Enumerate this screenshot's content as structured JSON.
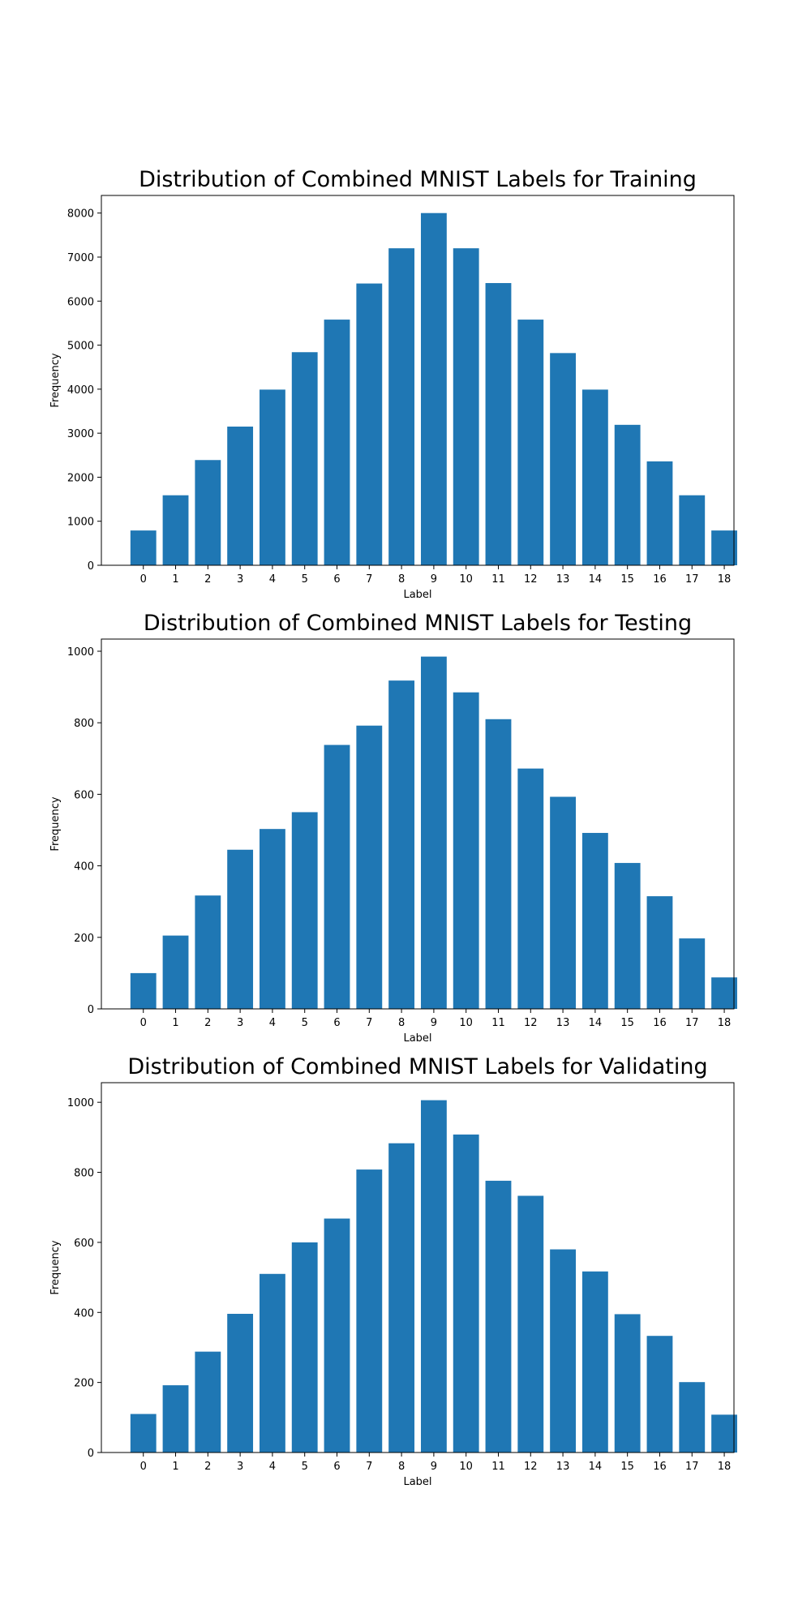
{
  "chart_data": [
    {
      "type": "bar",
      "title": "Distribution of Combined MNIST Labels for Training",
      "xlabel": "Label",
      "ylabel": "Frequency",
      "categories": [
        "0",
        "1",
        "2",
        "3",
        "4",
        "5",
        "6",
        "7",
        "8",
        "9",
        "10",
        "11",
        "12",
        "13",
        "14",
        "15",
        "16",
        "17",
        "18"
      ],
      "values": [
        790,
        1590,
        2390,
        3150,
        3990,
        4840,
        5580,
        6400,
        7200,
        8000,
        7200,
        6410,
        5580,
        4820,
        3990,
        3190,
        2360,
        1590,
        790
      ],
      "yticks": [
        0,
        1000,
        2000,
        3000,
        4000,
        5000,
        6000,
        7000,
        8000
      ],
      "ylim": [
        0,
        8400
      ],
      "color": "#1f77b4",
      "grid": false
    },
    {
      "type": "bar",
      "title": "Distribution of Combined MNIST Labels for Testing",
      "xlabel": "Label",
      "ylabel": "Frequency",
      "categories": [
        "0",
        "1",
        "2",
        "3",
        "4",
        "5",
        "6",
        "7",
        "8",
        "9",
        "10",
        "11",
        "12",
        "13",
        "14",
        "15",
        "16",
        "17",
        "18"
      ],
      "values": [
        100,
        205,
        317,
        445,
        503,
        550,
        738,
        792,
        918,
        985,
        885,
        810,
        672,
        593,
        492,
        408,
        315,
        197,
        88
      ],
      "yticks": [
        0,
        200,
        400,
        600,
        800,
        1000
      ],
      "ylim": [
        0,
        1034
      ],
      "color": "#1f77b4",
      "grid": false
    },
    {
      "type": "bar",
      "title": "Distribution of Combined MNIST Labels for Validating",
      "xlabel": "Label",
      "ylabel": "Frequency",
      "categories": [
        "0",
        "1",
        "2",
        "3",
        "4",
        "5",
        "6",
        "7",
        "8",
        "9",
        "10",
        "11",
        "12",
        "13",
        "14",
        "15",
        "16",
        "17",
        "18"
      ],
      "values": [
        110,
        192,
        288,
        396,
        510,
        600,
        668,
        808,
        883,
        1006,
        908,
        776,
        733,
        580,
        517,
        395,
        333,
        201,
        108
      ],
      "yticks": [
        0,
        200,
        400,
        600,
        800,
        1000
      ],
      "ylim": [
        0,
        1056
      ],
      "color": "#1f77b4",
      "grid": false
    }
  ]
}
